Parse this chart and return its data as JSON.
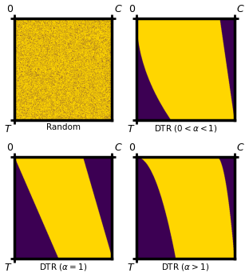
{
  "yellow": "#FFD700",
  "purple": "#3D0054",
  "background": "#FFFFFF",
  "border_color": "#000000",
  "labels": {
    "top_left": "Random",
    "top_right": "DTR $(0 < \\alpha < 1)$",
    "bottom_left": "DTR $(\\alpha = 1)$",
    "bottom_right": "DTR $(\\alpha > 1)$"
  },
  "figsize": [
    3.12,
    3.46
  ],
  "dpi": 100,
  "N": 400
}
